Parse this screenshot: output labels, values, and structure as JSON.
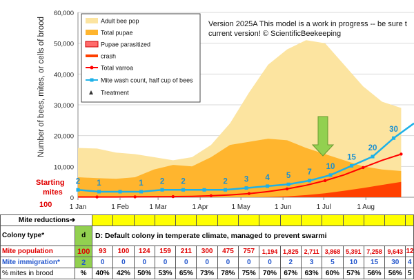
{
  "chart_data": {
    "type": "area",
    "ylabel": "Number of bees, mites, or cells of brood",
    "ylim": [
      0,
      60000
    ],
    "yticks": [
      "0",
      "10,000",
      "20,000",
      "30,000",
      "40,000",
      "50,000",
      "60,000"
    ],
    "xticks": [
      "1 Jan",
      "1 Feb",
      "1 Mar",
      "1 Apr",
      "1 May",
      "1 Jun",
      "1 Jul",
      "1 Aug"
    ],
    "legend": [
      "Adult bee pop",
      "Total pupae",
      "Pupae parasitized",
      "crash",
      "Total varroa",
      "Mite wash count, half cup of bees",
      "Treatment"
    ],
    "series_colors": {
      "adult": "#fce4a0",
      "pupae": "#ffb52e",
      "parasitized": "#ff6b6b",
      "crash": "#ff4000",
      "varroa": "#ff0000",
      "mitewash": "#1eb1e8"
    },
    "days": [
      0,
      14,
      28,
      42,
      56,
      70,
      84,
      98,
      112,
      126,
      140,
      154,
      168,
      182,
      196,
      210,
      224,
      238
    ],
    "adult": [
      16000,
      15800,
      14500,
      14000,
      13000,
      12000,
      13000,
      17000,
      24000,
      34000,
      43000,
      48000,
      51000,
      50000,
      43000,
      36000,
      31000,
      29000
    ],
    "pupae": [
      6500,
      6200,
      6000,
      6500,
      9000,
      10500,
      10000,
      13000,
      17000,
      18000,
      19000,
      18500,
      16000,
      14000,
      12000,
      10000,
      9000,
      8500
    ],
    "crash_area": [
      0,
      0,
      0,
      0,
      0,
      0,
      0,
      0,
      0,
      0,
      100,
      300,
      700,
      1300,
      2100,
      3000,
      4000,
      5000
    ],
    "varroa": [
      100,
      93,
      100,
      124,
      159,
      211,
      300,
      475,
      757,
      1194,
      1825,
      2711,
      3868,
      5391,
      7258,
      9643,
      12000,
      14000
    ],
    "mitewash_values": [
      2,
      1,
      1,
      1,
      2,
      2,
      2,
      2,
      3,
      4,
      5,
      7,
      10,
      15,
      20,
      30
    ],
    "mitewash_labels": [
      "2",
      "1",
      "1",
      "1",
      "2",
      "2",
      "2",
      "2",
      "3",
      "4",
      "5",
      "7",
      "10",
      "15",
      "20",
      "30"
    ],
    "mitewash_label_show": [
      true,
      true,
      false,
      true,
      true,
      true,
      false,
      true,
      true,
      true,
      true,
      true,
      true,
      true,
      true,
      true
    ]
  },
  "annotation": "Version 2025A This model is a work in progress -- be sure t current version!  © ScientificBeekeeping",
  "starting_mites": {
    "label1": "Starting",
    "label2": "mites",
    "value": "100"
  },
  "table": {
    "mite_reductions_label": "Mite reductions➔",
    "colony_type_label": "Colony type*",
    "colony_type_value": "d",
    "colony_desc": "D: Default colony in temperate climate, managed to prevent swarmi",
    "mite_population_label": "Mite population",
    "mite_population_first": "100",
    "mite_population": [
      "93",
      "100",
      "124",
      "159",
      "211",
      "300",
      "475",
      "757",
      "1,194",
      "1,825",
      "2,711",
      "3,868",
      "5,391",
      "7,258",
      "9,643",
      "12,"
    ],
    "mite_immigration_label": "Mite immigration*",
    "mite_immigration_first": "2",
    "mite_immigration": [
      "0",
      "0",
      "0",
      "0",
      "0",
      "0",
      "0",
      "0",
      "0",
      "2",
      "3",
      "5",
      "10",
      "15",
      "30",
      "4"
    ],
    "pct_brood_label": "% mites in brood",
    "pct_brood_first": "%",
    "pct_brood": [
      "40%",
      "42%",
      "50%",
      "53%",
      "65%",
      "73%",
      "78%",
      "75%",
      "70%",
      "67%",
      "63%",
      "60%",
      "57%",
      "56%",
      "56%",
      "5"
    ]
  }
}
